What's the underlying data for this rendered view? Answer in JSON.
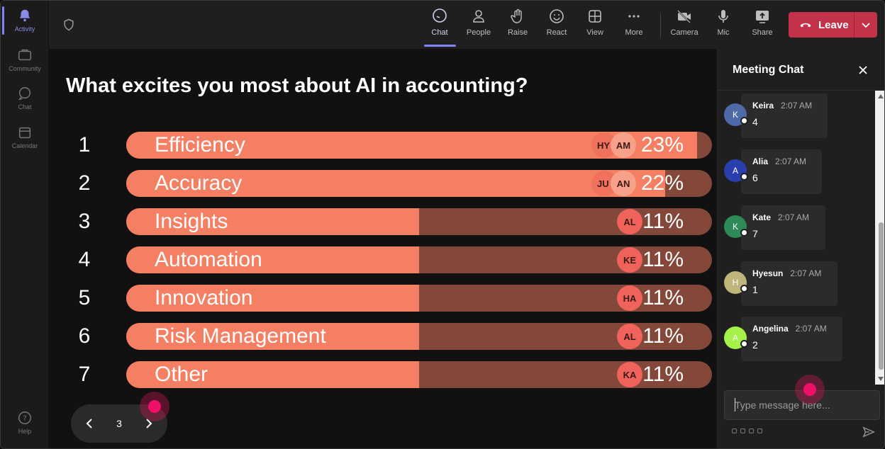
{
  "rail": {
    "items": [
      {
        "label": "Activity",
        "icon": "bell-icon"
      },
      {
        "label": "Community",
        "icon": "community-icon"
      },
      {
        "label": "Chat",
        "icon": "chat-icon"
      },
      {
        "label": "Calendar",
        "icon": "calendar-icon"
      },
      {
        "label": "Help",
        "icon": "help-icon"
      }
    ]
  },
  "toolbar": {
    "chat": "Chat",
    "people": "People",
    "raise": "Raise",
    "react": "React",
    "view": "View",
    "more": "More",
    "camera": "Camera",
    "mic": "Mic",
    "share": "Share",
    "leave": "Leave"
  },
  "poll": {
    "question": "What excites you most about AI in accounting?",
    "options": [
      {
        "num": "1",
        "label": "Efficiency",
        "pct": "23%",
        "fill": 0.975,
        "voters": [
          "HY",
          "AM"
        ]
      },
      {
        "num": "2",
        "label": "Accuracy",
        "pct": "22%",
        "fill": 0.92,
        "voters": [
          "JU",
          "AN"
        ]
      },
      {
        "num": "3",
        "label": "Insights",
        "pct": "11%",
        "fill": 0.5,
        "voters": [
          "AL"
        ]
      },
      {
        "num": "4",
        "label": "Automation",
        "pct": "11%",
        "fill": 0.5,
        "voters": [
          "KE"
        ]
      },
      {
        "num": "5",
        "label": "Innovation",
        "pct": "11%",
        "fill": 0.5,
        "voters": [
          "HA"
        ]
      },
      {
        "num": "6",
        "label": "Risk Management",
        "pct": "11%",
        "fill": 0.5,
        "voters": [
          "AL"
        ]
      },
      {
        "num": "7",
        "label": "Other",
        "pct": "11%",
        "fill": 0.5,
        "voters": [
          "KA"
        ]
      }
    ],
    "page": "3"
  },
  "chat": {
    "title": "Meeting Chat",
    "messages": [
      {
        "initial": "K",
        "name": "Keira",
        "time": "2:07 AM",
        "text": "4",
        "color": "#4f6aa8"
      },
      {
        "initial": "A",
        "name": "Alia",
        "time": "2:07 AM",
        "text": "6",
        "color": "#2a3fae"
      },
      {
        "initial": "K",
        "name": "Kate",
        "time": "2:07 AM",
        "text": "7",
        "color": "#2e8b57"
      },
      {
        "initial": "H",
        "name": "Hyesun",
        "time": "2:07 AM",
        "text": "1",
        "color": "#bdb57a"
      },
      {
        "initial": "A",
        "name": "Angelina",
        "time": "2:07 AM",
        "text": "2",
        "color": "#a6f04a"
      }
    ],
    "placeholder": "Type message here..."
  },
  "colors": {
    "bar_fill": "#f47f63",
    "bar_track": "#83483a",
    "leave": "#c4314b",
    "accent": "#7f85f5"
  }
}
